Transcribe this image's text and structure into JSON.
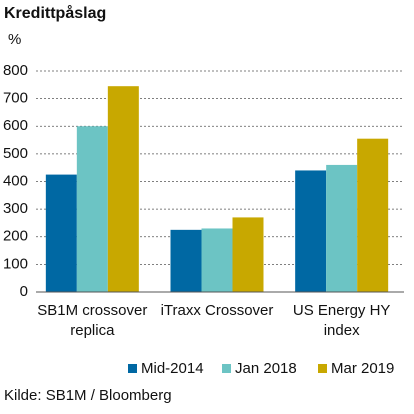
{
  "chart_data": {
    "type": "bar",
    "title": "Kredittpåslag",
    "y_label": "%",
    "categories": [
      "SB1M crossover replica",
      "iTraxx Crossover",
      "US Energy HY index"
    ],
    "series": [
      {
        "name": "Mid-2014",
        "color": "#0068a3",
        "values": [
          425,
          225,
          440
        ]
      },
      {
        "name": "Jan 2018",
        "color": "#6cc4c4",
        "values": [
          600,
          230,
          460
        ]
      },
      {
        "name": "Mar 2019",
        "color": "#c8a800",
        "values": [
          745,
          270,
          555
        ]
      }
    ],
    "ylim": [
      0,
      800
    ],
    "yticks": [
      0,
      100,
      200,
      300,
      400,
      500,
      600,
      700,
      800
    ],
    "grid": true,
    "legend": "bottom",
    "source": "Kilde: SB1M / Bloomberg"
  }
}
